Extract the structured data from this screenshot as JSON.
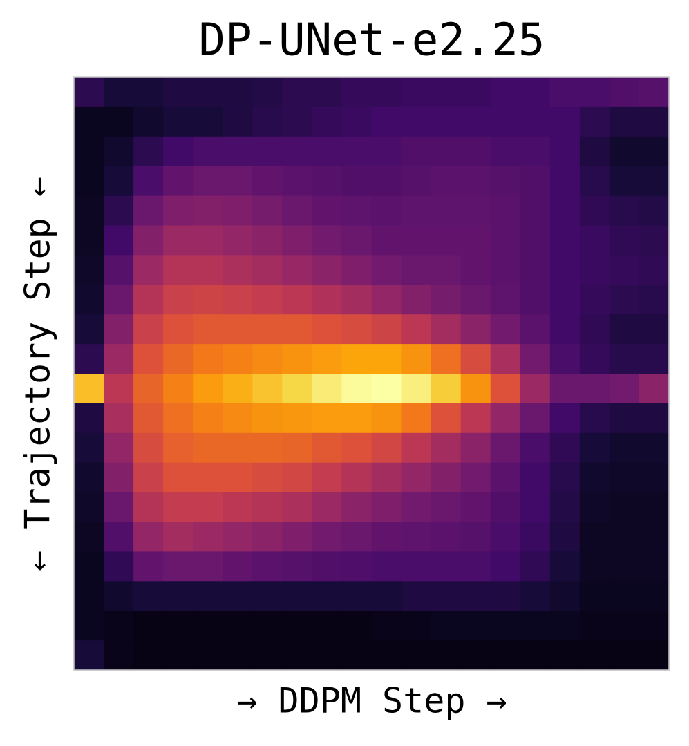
{
  "chart_data": {
    "type": "heatmap",
    "title": "DP-UNet-e2.25",
    "x_label": "→ DDPM Step →",
    "y_label": "← Trajectory Step ←",
    "colormap": "inferno",
    "z": [
      [
        0.15,
        0.1,
        0.1,
        0.12,
        0.12,
        0.12,
        0.13,
        0.15,
        0.15,
        0.17,
        0.17,
        0.18,
        0.18,
        0.18,
        0.2,
        0.2,
        0.22,
        0.22,
        0.24,
        0.25
      ],
      [
        0.05,
        0.05,
        0.08,
        0.1,
        0.1,
        0.12,
        0.14,
        0.15,
        0.17,
        0.18,
        0.2,
        0.2,
        0.2,
        0.2,
        0.2,
        0.2,
        0.2,
        0.15,
        0.12,
        0.12
      ],
      [
        0.05,
        0.08,
        0.15,
        0.2,
        0.22,
        0.22,
        0.22,
        0.22,
        0.22,
        0.22,
        0.22,
        0.24,
        0.24,
        0.24,
        0.22,
        0.22,
        0.2,
        0.12,
        0.08,
        0.08
      ],
      [
        0.05,
        0.1,
        0.22,
        0.28,
        0.3,
        0.3,
        0.28,
        0.26,
        0.25,
        0.24,
        0.24,
        0.25,
        0.26,
        0.26,
        0.25,
        0.24,
        0.2,
        0.14,
        0.1,
        0.1
      ],
      [
        0.06,
        0.15,
        0.3,
        0.35,
        0.36,
        0.35,
        0.33,
        0.3,
        0.28,
        0.27,
        0.26,
        0.27,
        0.27,
        0.27,
        0.26,
        0.24,
        0.2,
        0.16,
        0.14,
        0.13
      ],
      [
        0.06,
        0.2,
        0.36,
        0.42,
        0.42,
        0.4,
        0.38,
        0.35,
        0.32,
        0.3,
        0.28,
        0.28,
        0.28,
        0.28,
        0.26,
        0.24,
        0.2,
        0.18,
        0.16,
        0.15
      ],
      [
        0.07,
        0.25,
        0.42,
        0.48,
        0.48,
        0.46,
        0.44,
        0.41,
        0.38,
        0.35,
        0.32,
        0.3,
        0.3,
        0.28,
        0.26,
        0.24,
        0.2,
        0.18,
        0.17,
        0.16
      ],
      [
        0.08,
        0.3,
        0.48,
        0.54,
        0.55,
        0.54,
        0.52,
        0.5,
        0.47,
        0.44,
        0.4,
        0.36,
        0.33,
        0.3,
        0.27,
        0.24,
        0.2,
        0.17,
        0.15,
        0.14
      ],
      [
        0.1,
        0.36,
        0.54,
        0.6,
        0.62,
        0.62,
        0.62,
        0.62,
        0.6,
        0.58,
        0.55,
        0.5,
        0.44,
        0.38,
        0.32,
        0.26,
        0.2,
        0.16,
        0.12,
        0.12
      ],
      [
        0.15,
        0.42,
        0.6,
        0.66,
        0.7,
        0.72,
        0.74,
        0.76,
        0.78,
        0.8,
        0.8,
        0.76,
        0.68,
        0.58,
        0.45,
        0.32,
        0.22,
        0.17,
        0.14,
        0.14
      ],
      [
        0.85,
        0.5,
        0.65,
        0.72,
        0.78,
        0.82,
        0.86,
        0.9,
        0.95,
        0.99,
        1.0,
        0.96,
        0.88,
        0.76,
        0.6,
        0.42,
        0.3,
        0.3,
        0.32,
        0.38
      ],
      [
        0.12,
        0.45,
        0.62,
        0.68,
        0.72,
        0.74,
        0.76,
        0.77,
        0.78,
        0.78,
        0.76,
        0.7,
        0.6,
        0.5,
        0.4,
        0.3,
        0.2,
        0.14,
        0.12,
        0.12
      ],
      [
        0.1,
        0.4,
        0.58,
        0.64,
        0.66,
        0.66,
        0.66,
        0.65,
        0.62,
        0.6,
        0.56,
        0.5,
        0.44,
        0.38,
        0.3,
        0.22,
        0.16,
        0.1,
        0.08,
        0.08
      ],
      [
        0.08,
        0.36,
        0.54,
        0.6,
        0.6,
        0.6,
        0.58,
        0.56,
        0.52,
        0.48,
        0.44,
        0.4,
        0.36,
        0.32,
        0.26,
        0.2,
        0.14,
        0.08,
        0.07,
        0.07
      ],
      [
        0.07,
        0.3,
        0.48,
        0.52,
        0.52,
        0.5,
        0.48,
        0.46,
        0.42,
        0.38,
        0.35,
        0.32,
        0.3,
        0.28,
        0.24,
        0.2,
        0.13,
        0.07,
        0.06,
        0.06
      ],
      [
        0.06,
        0.24,
        0.4,
        0.44,
        0.42,
        0.4,
        0.38,
        0.35,
        0.32,
        0.3,
        0.28,
        0.27,
        0.26,
        0.25,
        0.22,
        0.18,
        0.12,
        0.06,
        0.06,
        0.06
      ],
      [
        0.05,
        0.16,
        0.28,
        0.3,
        0.3,
        0.28,
        0.26,
        0.25,
        0.24,
        0.23,
        0.22,
        0.22,
        0.22,
        0.22,
        0.2,
        0.16,
        0.1,
        0.06,
        0.06,
        0.06
      ],
      [
        0.05,
        0.08,
        0.1,
        0.1,
        0.1,
        0.1,
        0.1,
        0.1,
        0.1,
        0.1,
        0.1,
        0.12,
        0.12,
        0.12,
        0.12,
        0.1,
        0.08,
        0.05,
        0.05,
        0.05
      ],
      [
        0.05,
        0.04,
        0.03,
        0.03,
        0.03,
        0.03,
        0.03,
        0.03,
        0.03,
        0.03,
        0.04,
        0.04,
        0.05,
        0.05,
        0.05,
        0.05,
        0.05,
        0.04,
        0.04,
        0.04
      ],
      [
        0.1,
        0.04,
        0.03,
        0.03,
        0.03,
        0.03,
        0.03,
        0.03,
        0.03,
        0.03,
        0.03,
        0.03,
        0.03,
        0.03,
        0.03,
        0.03,
        0.03,
        0.03,
        0.03,
        0.03
      ]
    ]
  }
}
